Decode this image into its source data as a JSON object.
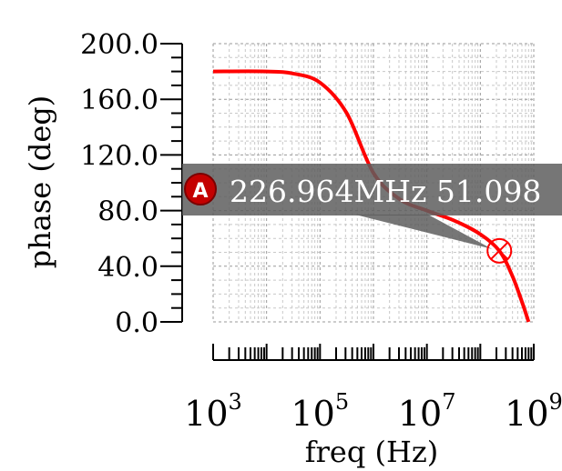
{
  "chart_data": {
    "type": "line",
    "xlabel": "freq (Hz)",
    "ylabel": "phase (deg)",
    "x_scale": "log",
    "xlim": [
      1000,
      1000000000
    ],
    "ylim": [
      0,
      200
    ],
    "grid": true,
    "y_ticks": [
      "0.0",
      "40.0",
      "80.0",
      "120.0",
      "160.0",
      "200.0"
    ],
    "x_ticks": [
      {
        "base": "10",
        "exp": "3"
      },
      {
        "base": "10",
        "exp": "5"
      },
      {
        "base": "10",
        "exp": "7"
      },
      {
        "base": "10",
        "exp": "9"
      }
    ],
    "series": [
      {
        "color": "#ff0000",
        "x": [
          1000,
          10000,
          31623,
          100000,
          316228,
          1000000,
          3162278,
          10000000,
          31622777,
          100000000,
          226964000,
          398107000,
          631000000,
          800000000
        ],
        "y": [
          180,
          180,
          178.5,
          172,
          150,
          107,
          88,
          80,
          73,
          63,
          51.098,
          33,
          12,
          0
        ]
      }
    ],
    "annotations": [
      {
        "badge": "A",
        "label": "226.964MHz 51.098",
        "x": 226964000,
        "y": 51.098
      }
    ]
  }
}
